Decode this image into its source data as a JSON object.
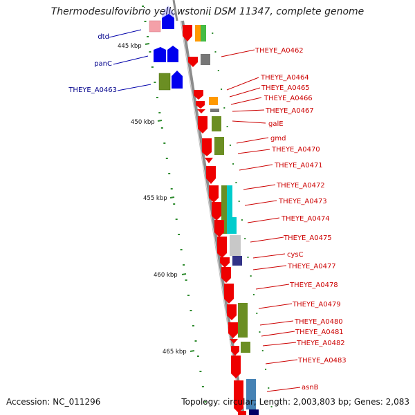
{
  "title": "Thermodesulfovibrio yellowstonii DSM 11347, complete genome",
  "accession": "Accession: NC_011296",
  "topology": "Topology: circular; Length: 2,003,803 bp; Genes: 2,083",
  "colors": {
    "backbone": "#8c8c8c",
    "ruler_ticks": "#2e8b2e",
    "label_red": "#cc0000",
    "label_blue": "#00008b"
  },
  "kbp_labels": [
    "445 kbp",
    "450 kbp",
    "455 kbp",
    "460 kbp",
    "465 kbp"
  ],
  "left_genes": [
    {
      "label": "dtd"
    },
    {
      "label": "panC"
    },
    {
      "label": "THEYE_A0463"
    }
  ],
  "right_genes": [
    {
      "label": "THEYE_A0462"
    },
    {
      "label": "THEYE_A0464"
    },
    {
      "label": "THEYE_A0465"
    },
    {
      "label": "THEYE_A0466"
    },
    {
      "label": "THEYE_A0467"
    },
    {
      "label": "galE"
    },
    {
      "label": "gmd"
    },
    {
      "label": "THEYE_A0470"
    },
    {
      "label": "THEYE_A0471"
    },
    {
      "label": "THEYE_A0472"
    },
    {
      "label": "THEYE_A0473"
    },
    {
      "label": "THEYE_A0474"
    },
    {
      "label": "THEYE_A0475"
    },
    {
      "label": "cysC"
    },
    {
      "label": "THEYE_A0477"
    },
    {
      "label": "THEYE_A0478"
    },
    {
      "label": "THEYE_A0479"
    },
    {
      "label": "THEYE_A0480"
    },
    {
      "label": "THEYE_A0481"
    },
    {
      "label": "THEYE_A0482"
    },
    {
      "label": "THEYE_A0483"
    },
    {
      "label": "asnB"
    }
  ]
}
